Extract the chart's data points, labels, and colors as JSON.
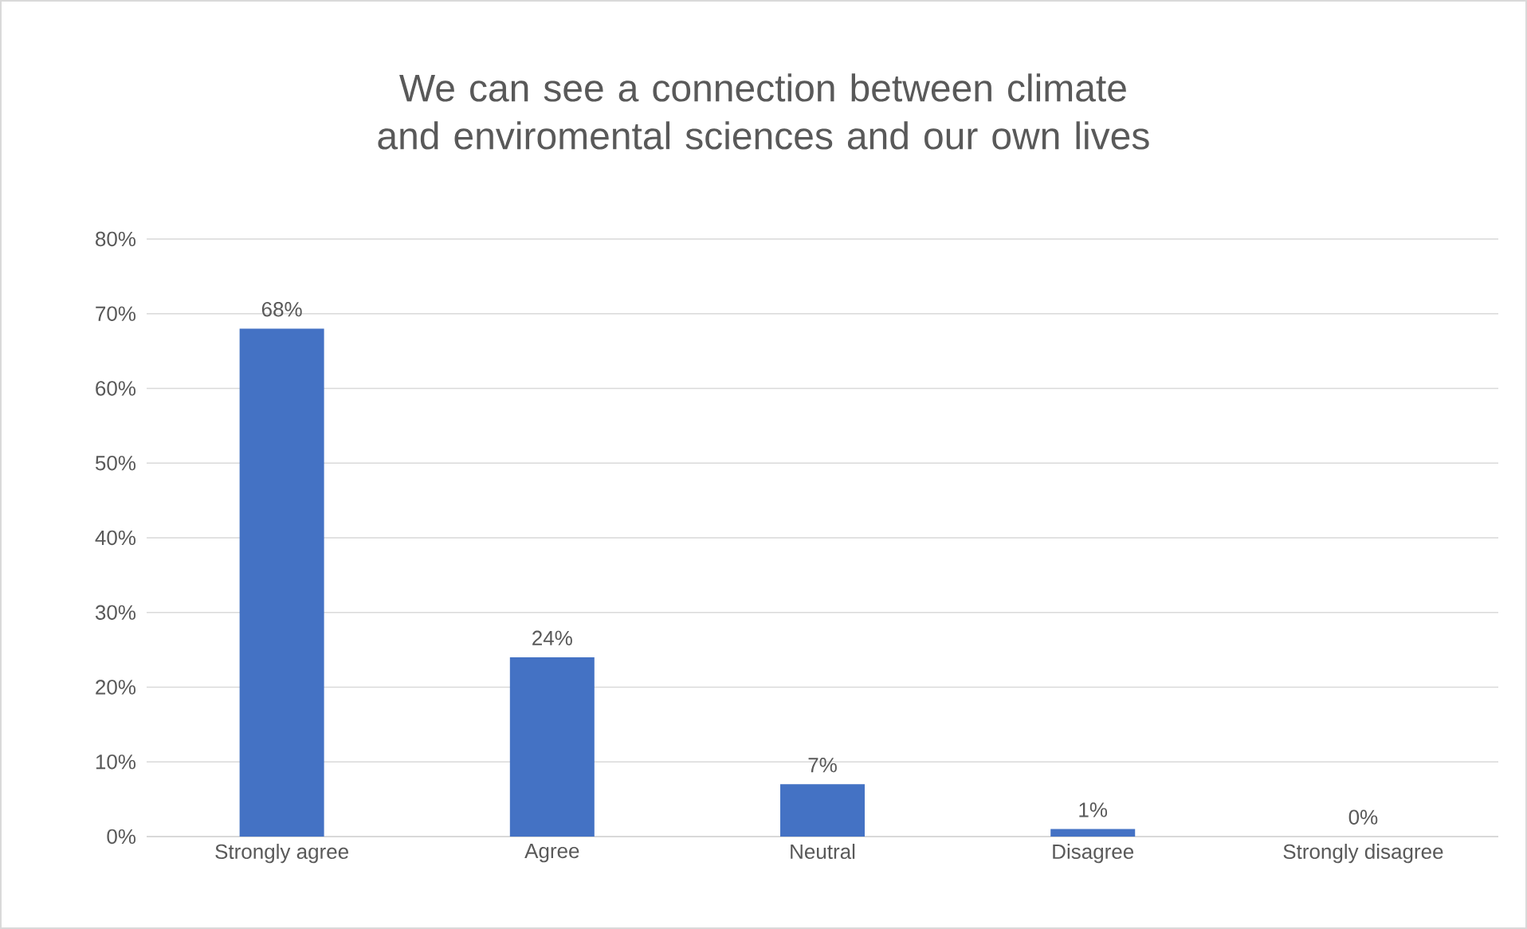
{
  "chart_data": {
    "type": "bar",
    "title": "We can see a connection between climate and enviromental sciences and our own lives",
    "categories": [
      "Strongly agree",
      "Agree",
      "Neutral",
      "Disagree",
      "Strongly disagree"
    ],
    "values": [
      68,
      24,
      7,
      1,
      0
    ],
    "value_labels": [
      "68%",
      "24%",
      "7%",
      "1%",
      "0%"
    ],
    "color": "#4472c4",
    "ylim": [
      0,
      80
    ],
    "yticks": [
      {
        "value": 0,
        "label": "0%"
      },
      {
        "value": 10,
        "label": "10%"
      },
      {
        "value": 20,
        "label": "20%"
      },
      {
        "value": 30,
        "label": "30%"
      },
      {
        "value": 40,
        "label": "40%"
      },
      {
        "value": 50,
        "label": "50%"
      },
      {
        "value": 60,
        "label": "60%"
      },
      {
        "value": 70,
        "label": "70%"
      },
      {
        "value": 80,
        "label": "80%"
      }
    ],
    "grid": "y"
  }
}
